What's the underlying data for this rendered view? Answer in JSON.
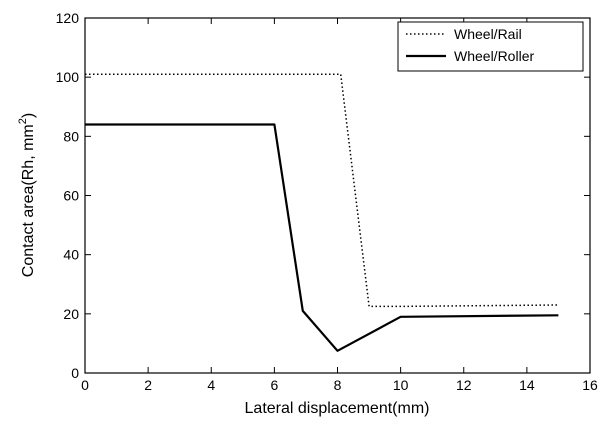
{
  "chart_data": {
    "type": "line",
    "title": "",
    "xlabel": "Lateral displacement(mm)",
    "ylabel_main": "Contact area(Rh, mm",
    "ylabel_sup": "2",
    "ylabel_end": ")",
    "xlim": [
      0,
      16
    ],
    "ylim": [
      0,
      120
    ],
    "xticks": [
      0,
      2,
      4,
      6,
      8,
      10,
      12,
      14,
      16
    ],
    "yticks": [
      0,
      20,
      40,
      60,
      80,
      100,
      120
    ],
    "grid": false,
    "legend_position": "top-right",
    "series": [
      {
        "name": "Wheel/Rail",
        "style": "dotted",
        "color": "#000000",
        "x": [
          0,
          8.1,
          9,
          10,
          15
        ],
        "y": [
          101,
          101,
          22.5,
          22.5,
          23
        ]
      },
      {
        "name": "Wheel/Roller",
        "style": "solid",
        "color": "#000000",
        "x": [
          0,
          6,
          6.9,
          8,
          10,
          15
        ],
        "y": [
          84,
          84,
          21,
          7.5,
          19,
          19.5
        ]
      }
    ]
  }
}
